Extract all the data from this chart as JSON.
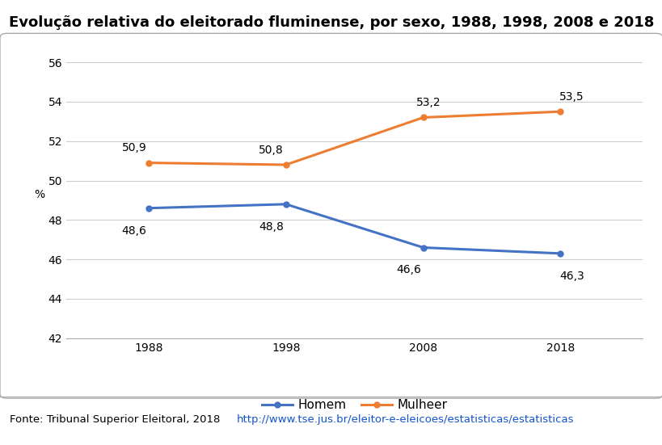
{
  "title": "Evolução relativa do eleitorado fluminense, por sexo, 1988, 1998, 2008 e 2018",
  "years": [
    1988,
    1998,
    2008,
    2018
  ],
  "homem": [
    48.6,
    48.8,
    46.6,
    46.3
  ],
  "mulheer": [
    50.9,
    50.8,
    53.2,
    53.5
  ],
  "homem_color": "#4472C4",
  "mulheer_color": "#ED7D31",
  "ylim": [
    42,
    56
  ],
  "yticks": [
    42,
    44,
    46,
    48,
    50,
    52,
    54,
    56
  ],
  "ylabel": "%",
  "legend_homem": "Homem",
  "legend_mulheer": "Mulheer",
  "fonte_text": "Fonte: Tribunal Superior Eleitoral, 2018 ",
  "fonte_url": "http://www.tse.jus.br/eleitor-e-eleicoes/estatisticas/estatisticas",
  "background_color": "#FFFFFF",
  "plot_bg_color": "#FFFFFF",
  "title_fontsize": 13,
  "tick_fontsize": 10,
  "annotation_fontsize": 10,
  "line_width": 2.2,
  "marker": "o",
  "marker_size": 5,
  "annot_homem": [
    "48,6",
    "48,8",
    "46,6",
    "46,3"
  ],
  "annot_mulheer": [
    "50,9",
    "50,8",
    "53,2",
    "53,5"
  ]
}
